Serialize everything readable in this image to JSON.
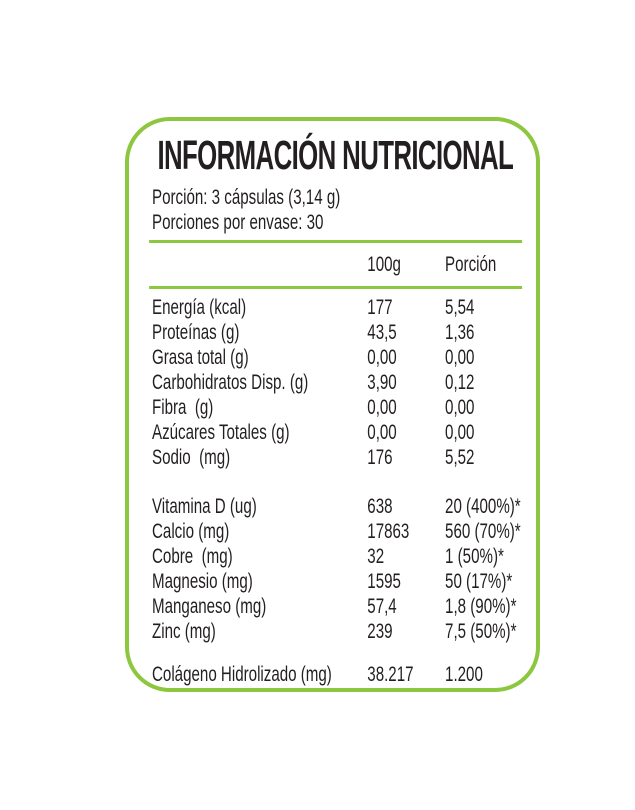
{
  "label": {
    "title": "INFORMACIÓN NUTRICIONAL",
    "serving": {
      "line1": "Porción: 3 cápsulas (3,14 g)",
      "line2": "Porciones por envase: 30"
    },
    "columns": [
      "100g",
      "Porción"
    ],
    "groups": [
      {
        "name": "macros",
        "rows": [
          {
            "label": "Energía (kcal)",
            "per_100g": "177",
            "portion": "5,54"
          },
          {
            "label": "Proteínas (g)",
            "per_100g": "43,5",
            "portion": "1,36"
          },
          {
            "label": "Grasa total (g)",
            "per_100g": "0,00",
            "portion": "0,00"
          },
          {
            "label": "Carbohidratos Disp. (g)",
            "per_100g": "3,90",
            "portion": "0,12"
          },
          {
            "label": "Fibra  (g)",
            "per_100g": "0,00",
            "portion": "0,00"
          },
          {
            "label": "Azúcares Totales (g)",
            "per_100g": "0,00",
            "portion": "0,00"
          },
          {
            "label": "Sodio  (mg)",
            "per_100g": "176",
            "portion": "5,52"
          }
        ]
      },
      {
        "name": "micros",
        "rows": [
          {
            "label": "Vitamina D (ug)",
            "per_100g": "638",
            "portion": "20 (400%)*"
          },
          {
            "label": "Calcio (mg)",
            "per_100g": "17863",
            "portion": "560 (70%)*"
          },
          {
            "label": "Cobre  (mg)",
            "per_100g": "32",
            "portion": "1 (50%)*"
          },
          {
            "label": "Magnesio (mg)",
            "per_100g": "1595",
            "portion": "50 (17%)*"
          },
          {
            "label": "Manganeso (mg)",
            "per_100g": "57,4",
            "portion": "1,8 (90%)*"
          },
          {
            "label": "Zinc (mg)",
            "per_100g": "239",
            "portion": "7,5 (50%)*"
          }
        ]
      },
      {
        "name": "collagen",
        "rows": [
          {
            "label": "Colágeno Hidrolizado (mg)",
            "per_100g": "38.217",
            "portion": "1.200"
          }
        ]
      }
    ],
    "colors": {
      "accent_green": "#8dc63f",
      "text_color": "#231f20"
    }
  }
}
